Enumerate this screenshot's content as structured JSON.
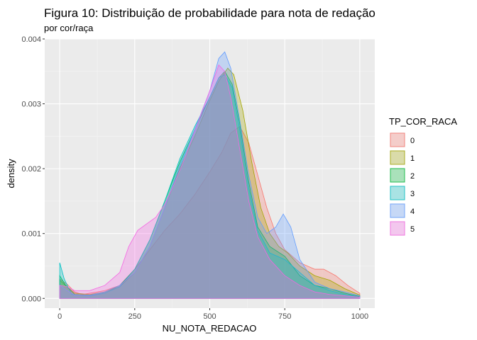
{
  "chart_data": {
    "type": "area",
    "title": "Figura 10: Distribuição de probabilidade para nota de redação",
    "subtitle": "por cor/raça",
    "xlabel": "NU_NOTA_REDACAO",
    "ylabel": "density",
    "xlim": [
      -50,
      1050
    ],
    "ylim": [
      -0.00015,
      0.004
    ],
    "x_ticks": [
      0,
      250,
      500,
      750,
      1000
    ],
    "x_tick_labels": [
      "0",
      "250",
      "500",
      "750",
      "1000"
    ],
    "y_ticks": [
      0.0,
      0.001,
      0.002,
      0.003,
      0.004
    ],
    "y_tick_labels": [
      "0.000",
      "0.001",
      "0.002",
      "0.003",
      "0.004"
    ],
    "grid": true,
    "legend_position": "right",
    "legend_title": "TP_COR_RACA",
    "series": [
      {
        "name": "0",
        "color": "#F8766D",
        "points": [
          [
            0,
            0.0003
          ],
          [
            25,
            0.00022
          ],
          [
            50,
            0.0001
          ],
          [
            75,
            6e-05
          ],
          [
            100,
            8e-05
          ],
          [
            150,
            0.00012
          ],
          [
            200,
            0.0002
          ],
          [
            250,
            0.00045
          ],
          [
            300,
            0.00075
          ],
          [
            350,
            0.00105
          ],
          [
            400,
            0.0013
          ],
          [
            450,
            0.0016
          ],
          [
            500,
            0.00195
          ],
          [
            540,
            0.00225
          ],
          [
            570,
            0.00255
          ],
          [
            600,
            0.00265
          ],
          [
            630,
            0.0024
          ],
          [
            660,
            0.0019
          ],
          [
            690,
            0.0014
          ],
          [
            720,
            0.001
          ],
          [
            750,
            0.00075
          ],
          [
            800,
            0.00055
          ],
          [
            850,
            0.00045
          ],
          [
            880,
            0.00045
          ],
          [
            920,
            0.00035
          ],
          [
            960,
            0.0002
          ],
          [
            1000,
            8e-05
          ]
        ]
      },
      {
        "name": "1",
        "color": "#A3A500",
        "points": [
          [
            0,
            0.00028
          ],
          [
            25,
            0.00018
          ],
          [
            50,
            8e-05
          ],
          [
            100,
            6e-05
          ],
          [
            150,
            0.0001
          ],
          [
            200,
            0.00018
          ],
          [
            250,
            0.0004
          ],
          [
            300,
            0.0008
          ],
          [
            350,
            0.0014
          ],
          [
            400,
            0.002
          ],
          [
            450,
            0.0025
          ],
          [
            500,
            0.00305
          ],
          [
            530,
            0.00335
          ],
          [
            560,
            0.00355
          ],
          [
            580,
            0.00345
          ],
          [
            610,
            0.0029
          ],
          [
            640,
            0.0021
          ],
          [
            670,
            0.0014
          ],
          [
            700,
            0.001
          ],
          [
            730,
            0.0008
          ],
          [
            760,
            0.0007
          ],
          [
            800,
            0.0005
          ],
          [
            850,
            0.00035
          ],
          [
            900,
            0.00028
          ],
          [
            950,
            0.00015
          ],
          [
            1000,
            5e-05
          ]
        ]
      },
      {
        "name": "2",
        "color": "#00BA38",
        "points": [
          [
            0,
            0.00035
          ],
          [
            20,
            0.0002
          ],
          [
            50,
            6e-05
          ],
          [
            100,
            5e-05
          ],
          [
            150,
            0.0001
          ],
          [
            200,
            0.0002
          ],
          [
            250,
            0.00045
          ],
          [
            300,
            0.0009
          ],
          [
            350,
            0.0015
          ],
          [
            400,
            0.0021
          ],
          [
            450,
            0.0026
          ],
          [
            500,
            0.0031
          ],
          [
            530,
            0.0034
          ],
          [
            550,
            0.0035
          ],
          [
            575,
            0.0033
          ],
          [
            600,
            0.0027
          ],
          [
            630,
            0.0018
          ],
          [
            660,
            0.0011
          ],
          [
            700,
            0.0008
          ],
          [
            750,
            0.00065
          ],
          [
            800,
            0.00035
          ],
          [
            850,
            0.0002
          ],
          [
            900,
            0.00015
          ],
          [
            950,
            8e-05
          ],
          [
            1000,
            3e-05
          ]
        ]
      },
      {
        "name": "3",
        "color": "#00BFC4",
        "points": [
          [
            0,
            0.00055
          ],
          [
            15,
            0.0003
          ],
          [
            40,
            6e-05
          ],
          [
            100,
            4e-05
          ],
          [
            150,
            8e-05
          ],
          [
            200,
            0.00018
          ],
          [
            250,
            0.00045
          ],
          [
            300,
            0.0009
          ],
          [
            350,
            0.0015
          ],
          [
            400,
            0.00215
          ],
          [
            450,
            0.00265
          ],
          [
            500,
            0.0031
          ],
          [
            530,
            0.0034
          ],
          [
            550,
            0.00345
          ],
          [
            575,
            0.00325
          ],
          [
            600,
            0.0026
          ],
          [
            630,
            0.0017
          ],
          [
            660,
            0.00105
          ],
          [
            700,
            0.0007
          ],
          [
            750,
            0.0006
          ],
          [
            800,
            0.0004
          ],
          [
            850,
            0.0002
          ],
          [
            900,
            0.00012
          ],
          [
            950,
            6e-05
          ],
          [
            1000,
            2e-05
          ]
        ]
      },
      {
        "name": "4",
        "color": "#619CFF",
        "points": [
          [
            0,
            0.0002
          ],
          [
            25,
            0.00012
          ],
          [
            50,
            5e-05
          ],
          [
            100,
            5e-05
          ],
          [
            150,
            0.0001
          ],
          [
            200,
            0.0002
          ],
          [
            250,
            0.0004
          ],
          [
            300,
            0.0008
          ],
          [
            350,
            0.0014
          ],
          [
            400,
            0.00205
          ],
          [
            450,
            0.0026
          ],
          [
            500,
            0.0032
          ],
          [
            530,
            0.0037
          ],
          [
            550,
            0.0038
          ],
          [
            570,
            0.00355
          ],
          [
            600,
            0.00275
          ],
          [
            630,
            0.0019
          ],
          [
            660,
            0.00125
          ],
          [
            690,
            0.001
          ],
          [
            720,
            0.0011
          ],
          [
            745,
            0.0013
          ],
          [
            770,
            0.0011
          ],
          [
            800,
            0.0006
          ],
          [
            850,
            0.00025
          ],
          [
            900,
            0.00015
          ],
          [
            950,
            0.0001
          ],
          [
            1000,
            4e-05
          ]
        ]
      },
      {
        "name": "5",
        "color": "#F564E3",
        "points": [
          [
            0,
            0.0002
          ],
          [
            25,
            0.00018
          ],
          [
            50,
            0.00012
          ],
          [
            100,
            0.00012
          ],
          [
            150,
            0.0002
          ],
          [
            200,
            0.0004
          ],
          [
            230,
            0.0008
          ],
          [
            260,
            0.00105
          ],
          [
            290,
            0.00115
          ],
          [
            320,
            0.00125
          ],
          [
            350,
            0.00145
          ],
          [
            380,
            0.00175
          ],
          [
            420,
            0.0022
          ],
          [
            460,
            0.0027
          ],
          [
            500,
            0.0032
          ],
          [
            530,
            0.0036
          ],
          [
            550,
            0.0035
          ],
          [
            570,
            0.0031
          ],
          [
            600,
            0.0023
          ],
          [
            630,
            0.0015
          ],
          [
            660,
            0.00095
          ],
          [
            700,
            0.0006
          ],
          [
            750,
            0.00035
          ],
          [
            800,
            0.0002
          ],
          [
            850,
            0.0001
          ],
          [
            900,
            6e-05
          ],
          [
            1000,
            2e-05
          ]
        ]
      }
    ]
  }
}
